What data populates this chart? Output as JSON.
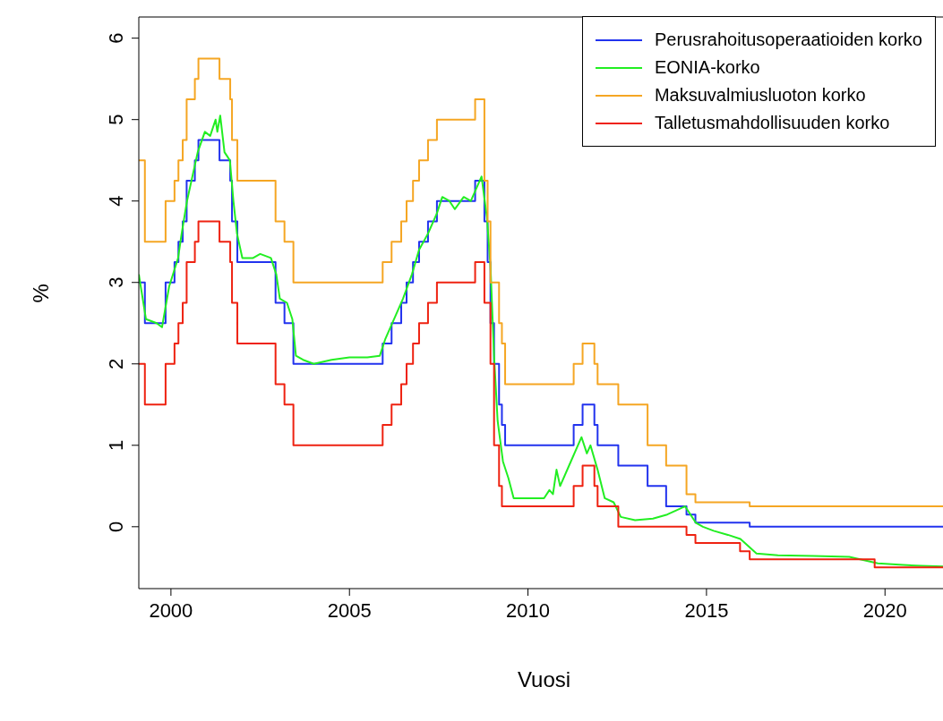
{
  "chart_data": {
    "type": "step",
    "xlabel": "Vuosi",
    "ylabel": "%",
    "xlim": [
      1999.1,
      2021.8
    ],
    "xticks": [
      2000,
      2005,
      2010,
      2015,
      2020
    ],
    "ylim": [
      -0.76,
      6.26
    ],
    "yticks": [
      0,
      1,
      2,
      3,
      4,
      5,
      6
    ],
    "legend": "top right",
    "line_style": "solid",
    "marker": "none",
    "series": [
      {
        "name": "Perusrahoitusoperaatioiden korko",
        "type": "step",
        "color": "#2233ee",
        "x": [
          1999.1,
          1999.27,
          1999.85,
          2000.1,
          2000.21,
          2000.33,
          2000.44,
          2000.67,
          2000.77,
          2001.36,
          2001.66,
          2001.71,
          2001.86,
          2002.93,
          2003.18,
          2003.43,
          2005.93,
          2006.18,
          2006.45,
          2006.6,
          2006.78,
          2006.95,
          2007.2,
          2007.45,
          2008.52,
          2008.78,
          2008.87,
          2008.95,
          2009.05,
          2009.19,
          2009.27,
          2009.36,
          2011.28,
          2011.53,
          2011.86,
          2011.95,
          2012.53,
          2013.35,
          2013.87,
          2014.44,
          2014.69,
          2016.21,
          2021.8
        ],
        "values": [
          3.0,
          2.5,
          3.0,
          3.25,
          3.5,
          3.75,
          4.25,
          4.5,
          4.75,
          4.5,
          4.25,
          3.75,
          3.25,
          2.75,
          2.5,
          2.0,
          2.25,
          2.5,
          2.75,
          3.0,
          3.25,
          3.5,
          3.75,
          4.0,
          4.25,
          3.75,
          3.25,
          2.5,
          2.0,
          1.5,
          1.25,
          1.0,
          1.25,
          1.5,
          1.25,
          1.0,
          0.75,
          0.5,
          0.25,
          0.15,
          0.05,
          0.0,
          0.0
        ]
      },
      {
        "name": "EONIA-korko",
        "type": "line",
        "color": "#22ee22",
        "x": [
          1999.1,
          1999.3,
          1999.6,
          1999.75,
          1999.95,
          2000.2,
          2000.3,
          2000.45,
          2000.6,
          2000.75,
          2000.95,
          2001.1,
          2001.25,
          2001.3,
          2001.38,
          2001.5,
          2001.65,
          2001.75,
          2001.85,
          2002.0,
          2002.3,
          2002.5,
          2002.8,
          2002.95,
          2003.05,
          2003.25,
          2003.4,
          2003.5,
          2003.7,
          2004.0,
          2004.5,
          2005.0,
          2005.5,
          2005.85,
          2006.0,
          2006.3,
          2006.5,
          2006.75,
          2006.95,
          2007.2,
          2007.45,
          2007.6,
          2007.8,
          2007.95,
          2008.2,
          2008.4,
          2008.7,
          2008.85,
          2008.95,
          2009.05,
          2009.15,
          2009.3,
          2009.45,
          2009.6,
          2010.0,
          2010.45,
          2010.6,
          2010.7,
          2010.8,
          2010.9,
          2011.2,
          2011.5,
          2011.65,
          2011.75,
          2011.95,
          2012.15,
          2012.4,
          2012.6,
          2013.0,
          2013.5,
          2013.9,
          2014.15,
          2014.4,
          2014.7,
          2014.9,
          2015.2,
          2015.6,
          2015.95,
          2016.2,
          2016.4,
          2017.0,
          2018.0,
          2019.0,
          2019.8,
          2020.5,
          2021.0,
          2021.7
        ],
        "values": [
          3.1,
          2.55,
          2.5,
          2.45,
          2.95,
          3.3,
          3.6,
          4.0,
          4.3,
          4.6,
          4.85,
          4.8,
          5.0,
          4.85,
          5.05,
          4.6,
          4.5,
          4.0,
          3.6,
          3.3,
          3.3,
          3.35,
          3.3,
          3.1,
          2.8,
          2.75,
          2.55,
          2.1,
          2.05,
          2.0,
          2.05,
          2.08,
          2.08,
          2.1,
          2.3,
          2.6,
          2.8,
          3.1,
          3.4,
          3.6,
          3.85,
          4.05,
          4.0,
          3.9,
          4.05,
          4.0,
          4.3,
          3.8,
          3.2,
          2.1,
          1.3,
          0.8,
          0.6,
          0.35,
          0.35,
          0.35,
          0.45,
          0.4,
          0.7,
          0.5,
          0.8,
          1.1,
          0.9,
          1.0,
          0.7,
          0.35,
          0.3,
          0.12,
          0.08,
          0.1,
          0.15,
          0.2,
          0.25,
          0.05,
          0.0,
          -0.05,
          -0.1,
          -0.15,
          -0.25,
          -0.33,
          -0.35,
          -0.36,
          -0.37,
          -0.45,
          -0.47,
          -0.48,
          -0.49
        ]
      },
      {
        "name": "Maksuvalmiusluoton korko",
        "type": "step",
        "color": "#f5a623",
        "x": [
          1999.1,
          1999.27,
          1999.85,
          2000.1,
          2000.21,
          2000.33,
          2000.44,
          2000.67,
          2000.77,
          2001.36,
          2001.66,
          2001.71,
          2001.86,
          2002.93,
          2003.18,
          2003.43,
          2005.93,
          2006.18,
          2006.45,
          2006.6,
          2006.78,
          2006.95,
          2007.2,
          2007.45,
          2008.52,
          2008.78,
          2008.87,
          2008.95,
          2009.19,
          2009.27,
          2009.36,
          2011.28,
          2011.53,
          2011.86,
          2011.95,
          2012.53,
          2013.35,
          2013.87,
          2014.44,
          2014.69,
          2016.21,
          2021.8
        ],
        "values": [
          4.5,
          3.5,
          4.0,
          4.25,
          4.5,
          4.75,
          5.25,
          5.5,
          5.75,
          5.5,
          5.25,
          4.75,
          4.25,
          3.75,
          3.5,
          3.0,
          3.25,
          3.5,
          3.75,
          4.0,
          4.25,
          4.5,
          4.75,
          5.0,
          5.25,
          4.25,
          3.75,
          3.0,
          2.5,
          2.25,
          1.75,
          2.0,
          2.25,
          2.0,
          1.75,
          1.5,
          1.0,
          0.75,
          0.4,
          0.3,
          0.25,
          0.25
        ]
      },
      {
        "name": "Talletusmahdollisuuden korko",
        "type": "step",
        "color": "#ee2211",
        "x": [
          1999.1,
          1999.27,
          1999.85,
          2000.1,
          2000.21,
          2000.33,
          2000.44,
          2000.67,
          2000.77,
          2001.36,
          2001.66,
          2001.71,
          2001.86,
          2002.93,
          2003.18,
          2003.43,
          2005.93,
          2006.18,
          2006.45,
          2006.6,
          2006.78,
          2006.95,
          2007.2,
          2007.45,
          2008.52,
          2008.78,
          2008.87,
          2008.95,
          2009.05,
          2009.19,
          2009.27,
          2011.28,
          2011.53,
          2011.86,
          2011.95,
          2012.53,
          2014.44,
          2014.69,
          2015.94,
          2016.21,
          2019.71,
          2021.8
        ],
        "values": [
          2.0,
          1.5,
          2.0,
          2.25,
          2.5,
          2.75,
          3.25,
          3.5,
          3.75,
          3.5,
          3.25,
          2.75,
          2.25,
          1.75,
          1.5,
          1.0,
          1.25,
          1.5,
          1.75,
          2.0,
          2.25,
          2.5,
          2.75,
          3.0,
          3.25,
          2.75,
          2.75,
          2.0,
          1.0,
          0.5,
          0.25,
          0.5,
          0.75,
          0.5,
          0.25,
          0.0,
          -0.1,
          -0.2,
          -0.3,
          -0.4,
          -0.5,
          -0.5
        ]
      }
    ]
  }
}
